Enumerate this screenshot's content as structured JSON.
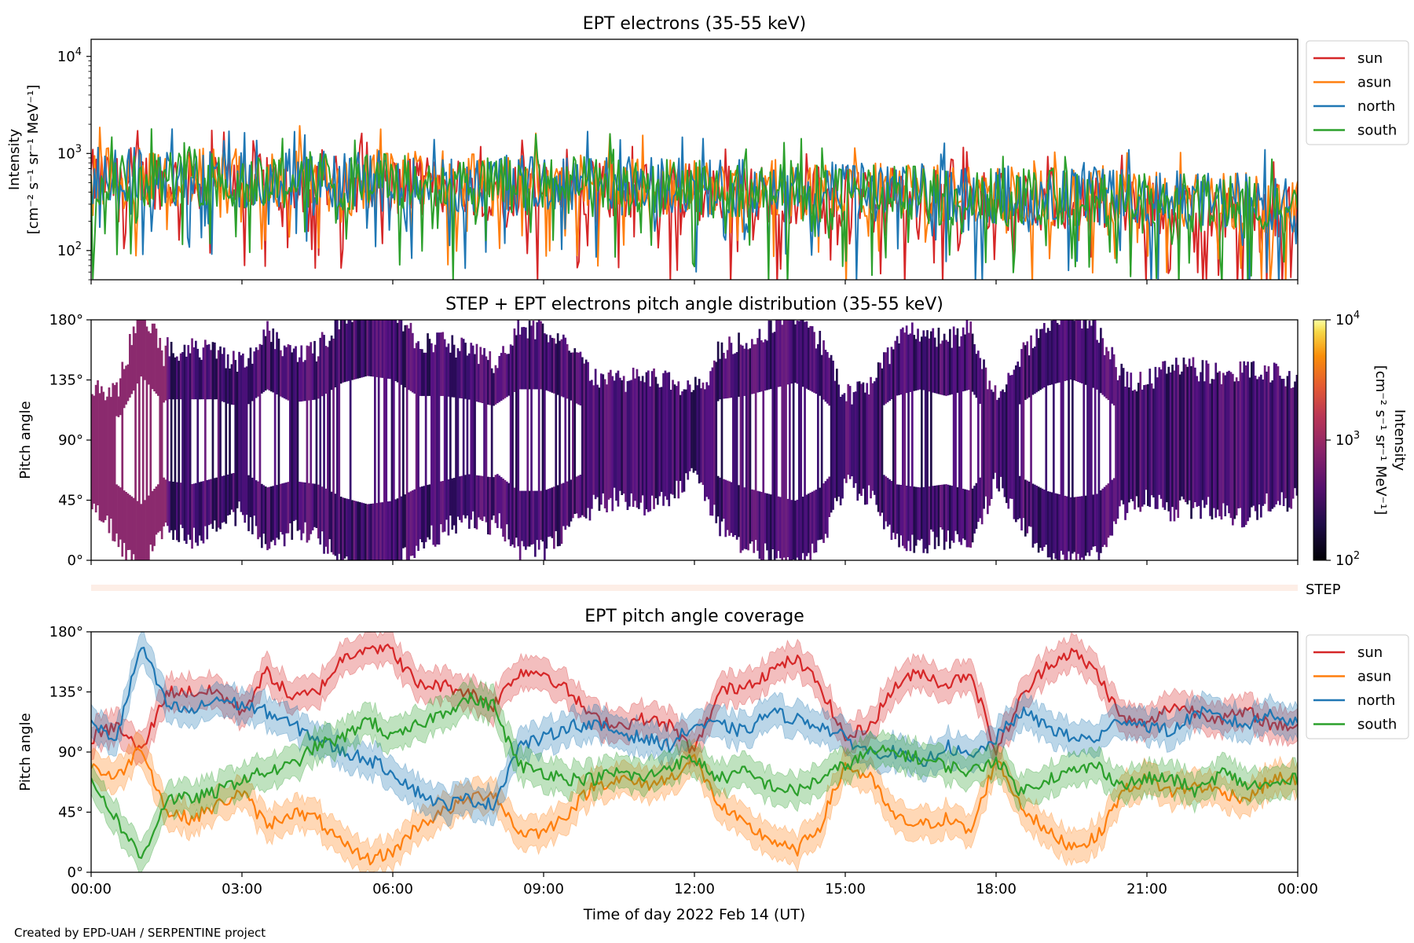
{
  "footer": "Created by EPD-UAH / SERPENTINE project",
  "xaxis": {
    "label": "Time of day 2022 Feb 14 (UT)",
    "range_hours": [
      0,
      24
    ],
    "ticks": [
      {
        "h": 0,
        "label": "00:00"
      },
      {
        "h": 3,
        "label": "03:00"
      },
      {
        "h": 6,
        "label": "06:00"
      },
      {
        "h": 9,
        "label": "09:00"
      },
      {
        "h": 12,
        "label": "12:00"
      },
      {
        "h": 15,
        "label": "15:00"
      },
      {
        "h": 18,
        "label": "18:00"
      },
      {
        "h": 21,
        "label": "21:00"
      },
      {
        "h": 24,
        "label": "00:00"
      }
    ]
  },
  "colors": {
    "sun": "#d62728",
    "asun": "#ff7f0e",
    "north": "#1f77b4",
    "south": "#2ca02c"
  },
  "step_label": "STEP",
  "chart_data": [
    {
      "type": "line",
      "title": "EPT electrons (35-55 keV)",
      "ylabel_line1": "Intensity",
      "ylabel_line2": "[cm⁻² s⁻¹ sr⁻¹ MeV⁻¹]",
      "yscale": "log",
      "ylim": [
        50,
        15000
      ],
      "yticks": [
        {
          "v": 100,
          "base": "10",
          "exp": "2"
        },
        {
          "v": 1000,
          "base": "10",
          "exp": "3"
        },
        {
          "v": 10000,
          "base": "10",
          "exp": "4"
        }
      ],
      "legend_position": "outside-right-top",
      "series": [
        {
          "name": "sun",
          "color_key": "sun",
          "typical": 350,
          "start": 550,
          "end": 250
        },
        {
          "name": "asun",
          "color_key": "asun",
          "typical": 400,
          "start": 600,
          "end": 300
        },
        {
          "name": "north",
          "color_key": "north",
          "typical": 400,
          "start": 600,
          "end": 300
        },
        {
          "name": "south",
          "color_key": "south",
          "typical": 380,
          "start": 580,
          "end": 280
        }
      ]
    },
    {
      "type": "heatmap",
      "title": "STEP + EPT electrons pitch angle distribution (35-55 keV)",
      "ylabel": "Pitch angle",
      "ylim": [
        0,
        180
      ],
      "yticks": [
        "0°",
        "45°",
        "90°",
        "135°",
        "180°"
      ],
      "colorbar": {
        "label_line1": "Intensity",
        "label_line2": "[cm⁻² s⁻¹ sr⁻¹ MeV⁻¹]",
        "scale": "log",
        "range": [
          100,
          10000
        ],
        "ticks": [
          {
            "v": 100,
            "base": "10",
            "exp": "2"
          },
          {
            "v": 1000,
            "base": "10",
            "exp": "3"
          },
          {
            "v": 10000,
            "base": "10",
            "exp": "4"
          }
        ],
        "colormap": "inferno"
      }
    },
    {
      "type": "area",
      "title": "EPT pitch angle coverage",
      "ylabel": "Pitch angle",
      "ylim": [
        0,
        180
      ],
      "yticks": [
        "0°",
        "45°",
        "90°",
        "135°",
        "180°"
      ],
      "legend_position": "outside-right-top",
      "x_hours": [
        0,
        0.5,
        1.0,
        1.5,
        2.0,
        2.5,
        3.0,
        3.5,
        4.0,
        4.5,
        5.0,
        5.5,
        6.0,
        6.5,
        7.0,
        7.5,
        8.0,
        8.5,
        9.0,
        9.5,
        10.0,
        10.5,
        11.0,
        11.5,
        12.0,
        12.5,
        13.0,
        13.5,
        14.0,
        14.5,
        15.0,
        15.5,
        16.0,
        16.5,
        17.0,
        17.5,
        18.0,
        18.5,
        19.0,
        19.5,
        20.0,
        20.5,
        21.0,
        21.5,
        22.0,
        22.5,
        23.0,
        23.5,
        24.0
      ],
      "series": [
        {
          "name": "sun",
          "color_key": "sun",
          "band": 12,
          "values": [
            100,
            110,
            90,
            135,
            135,
            135,
            120,
            150,
            130,
            135,
            160,
            170,
            165,
            140,
            140,
            135,
            125,
            150,
            150,
            135,
            115,
            110,
            115,
            110,
            90,
            135,
            140,
            150,
            160,
            140,
            100,
            110,
            140,
            150,
            140,
            150,
            90,
            130,
            155,
            165,
            150,
            115,
            110,
            125,
            120,
            115,
            120,
            110,
            110
          ]
        },
        {
          "name": "asun",
          "color_key": "asun",
          "band": 12,
          "values": [
            80,
            70,
            95,
            45,
            40,
            50,
            60,
            35,
            45,
            40,
            20,
            10,
            15,
            35,
            45,
            55,
            60,
            30,
            30,
            45,
            65,
            70,
            65,
            70,
            85,
            50,
            35,
            25,
            15,
            35,
            80,
            70,
            40,
            35,
            40,
            30,
            85,
            50,
            30,
            20,
            25,
            60,
            70,
            60,
            65,
            60,
            55,
            70,
            70
          ]
        },
        {
          "name": "north",
          "color_key": "north",
          "band": 12,
          "values": [
            110,
            100,
            170,
            125,
            120,
            130,
            125,
            120,
            110,
            100,
            90,
            85,
            75,
            60,
            50,
            55,
            50,
            95,
            100,
            110,
            110,
            105,
            100,
            95,
            110,
            110,
            105,
            120,
            115,
            110,
            100,
            90,
            90,
            80,
            95,
            85,
            100,
            120,
            110,
            100,
            100,
            115,
            110,
            105,
            120,
            115,
            110,
            120,
            110
          ]
        },
        {
          "name": "south",
          "color_key": "south",
          "band": 12,
          "values": [
            70,
            40,
            10,
            55,
            55,
            60,
            70,
            75,
            80,
            95,
            100,
            115,
            100,
            110,
            120,
            130,
            125,
            80,
            75,
            70,
            70,
            75,
            70,
            80,
            85,
            70,
            75,
            65,
            60,
            70,
            80,
            90,
            90,
            85,
            80,
            75,
            85,
            60,
            70,
            75,
            80,
            65,
            70,
            70,
            60,
            75,
            65,
            65,
            70
          ]
        }
      ]
    }
  ]
}
